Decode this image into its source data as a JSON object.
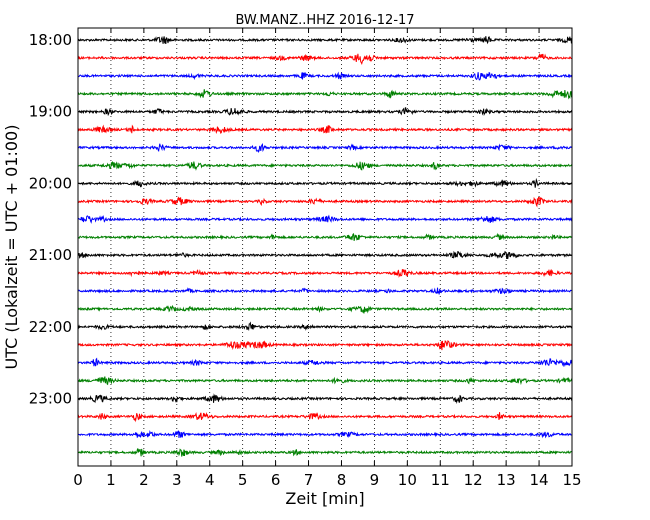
{
  "chart_data": {
    "type": "line",
    "title": "BW.MANZ..HHZ 2016-12-17",
    "xlabel": "Zeit  [min]",
    "ylabel": "UTC (Lokalzeit = UTC + 01:00)",
    "xlim": [
      0,
      15
    ],
    "x_ticks": [
      0,
      1,
      2,
      3,
      4,
      5,
      6,
      7,
      8,
      9,
      10,
      11,
      12,
      13,
      14,
      15
    ],
    "x_tick_labels": [
      "0",
      "1",
      "2",
      "3",
      "4",
      "5",
      "6",
      "7",
      "8",
      "9",
      "10",
      "11",
      "12",
      "13",
      "14",
      "15"
    ],
    "y_tick_labels": [
      "18:00",
      "19:00",
      "20:00",
      "21:00",
      "22:00",
      "23:00"
    ],
    "y_tick_rows": [
      0,
      4,
      8,
      12,
      16,
      20
    ],
    "row_minutes": 15,
    "grid": {
      "vertical_dotted": true,
      "horizontal": false
    },
    "series_colors": [
      "#000000",
      "#ff0000",
      "#0000ff",
      "#008000"
    ],
    "rows": [
      {
        "start": "18:00",
        "color": "#000000"
      },
      {
        "start": "18:15",
        "color": "#ff0000"
      },
      {
        "start": "18:30",
        "color": "#0000ff"
      },
      {
        "start": "18:45",
        "color": "#008000"
      },
      {
        "start": "19:00",
        "color": "#000000"
      },
      {
        "start": "19:15",
        "color": "#ff0000"
      },
      {
        "start": "19:30",
        "color": "#0000ff"
      },
      {
        "start": "19:45",
        "color": "#008000"
      },
      {
        "start": "20:00",
        "color": "#000000"
      },
      {
        "start": "20:15",
        "color": "#ff0000"
      },
      {
        "start": "20:30",
        "color": "#0000ff"
      },
      {
        "start": "20:45",
        "color": "#008000"
      },
      {
        "start": "21:00",
        "color": "#000000"
      },
      {
        "start": "21:15",
        "color": "#ff0000"
      },
      {
        "start": "21:30",
        "color": "#0000ff"
      },
      {
        "start": "21:45",
        "color": "#008000"
      },
      {
        "start": "22:00",
        "color": "#000000"
      },
      {
        "start": "22:15",
        "color": "#ff0000"
      },
      {
        "start": "22:30",
        "color": "#0000ff"
      },
      {
        "start": "22:45",
        "color": "#008000"
      },
      {
        "start": "23:00",
        "color": "#000000"
      },
      {
        "start": "23:15",
        "color": "#ff0000"
      },
      {
        "start": "23:30",
        "color": "#0000ff"
      },
      {
        "start": "23:45",
        "color": "#008000"
      }
    ]
  }
}
